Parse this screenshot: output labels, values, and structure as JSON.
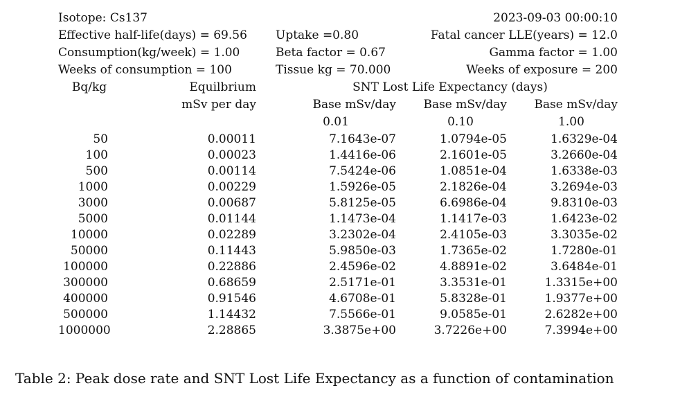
{
  "header": {
    "isotope": "Isotope: Cs137",
    "timestamp": "2023-09-03 00:00:10",
    "half_life": "Effective half-life(days) = 69.56",
    "uptake": "Uptake =0.80",
    "fatal_lle": "Fatal cancer LLE(years) = 12.0",
    "consumption": "Consumption(kg/week) = 1.00",
    "beta": "Beta factor = 0.67",
    "gamma": "Gamma factor = 1.00",
    "weeks_consumption": "Weeks of consumption = 100",
    "tissue": "Tissue kg = 70.000",
    "weeks_exposure": "Weeks of exposure = 200"
  },
  "columns": {
    "bqkg": "Bq/kg",
    "equilibrium": "Equilbrium",
    "msv_per_day": "mSv per day",
    "snt_title": "SNT Lost Life Expectancy (days)",
    "base1": "Base mSv/day",
    "base2": "Base mSv/day",
    "base3": "Base mSv/day",
    "base1_val": "0.01",
    "base2_val": "0.10",
    "base3_val": "1.00"
  },
  "rows": [
    [
      "50",
      "0.00011",
      "7.1643e-07",
      "1.0794e-05",
      "1.6329e-04"
    ],
    [
      "100",
      "0.00023",
      "1.4416e-06",
      "2.1601e-05",
      "3.2660e-04"
    ],
    [
      "500",
      "0.00114",
      "7.5424e-06",
      "1.0851e-04",
      "1.6338e-03"
    ],
    [
      "1000",
      "0.00229",
      "1.5926e-05",
      "2.1826e-04",
      "3.2694e-03"
    ],
    [
      "3000",
      "0.00687",
      "5.8125e-05",
      "6.6986e-04",
      "9.8310e-03"
    ],
    [
      "5000",
      "0.01144",
      "1.1473e-04",
      "1.1417e-03",
      "1.6423e-02"
    ],
    [
      "10000",
      "0.02289",
      "3.2302e-04",
      "2.4105e-03",
      "3.3035e-02"
    ],
    [
      "50000",
      "0.11443",
      "5.9850e-03",
      "1.7365e-02",
      "1.7280e-01"
    ],
    [
      "100000",
      "0.22886",
      "2.4596e-02",
      "4.8891e-02",
      "3.6484e-01"
    ],
    [
      "300000",
      "0.68659",
      "2.5171e-01",
      "3.3531e-01",
      "1.3315e+00"
    ],
    [
      "400000",
      "0.91546",
      "4.6708e-01",
      "5.8328e-01",
      "1.9377e+00"
    ],
    [
      "500000",
      "1.14432",
      "7.5566e-01",
      "9.0585e-01",
      "2.6282e+00"
    ],
    [
      "1000000",
      "2.28865",
      "3.3875e+00",
      "3.7226e+00",
      "7.3994e+00"
    ]
  ],
  "caption": "Table 2: Peak dose rate and SNT Lost Life Expectancy as a function of contamination"
}
